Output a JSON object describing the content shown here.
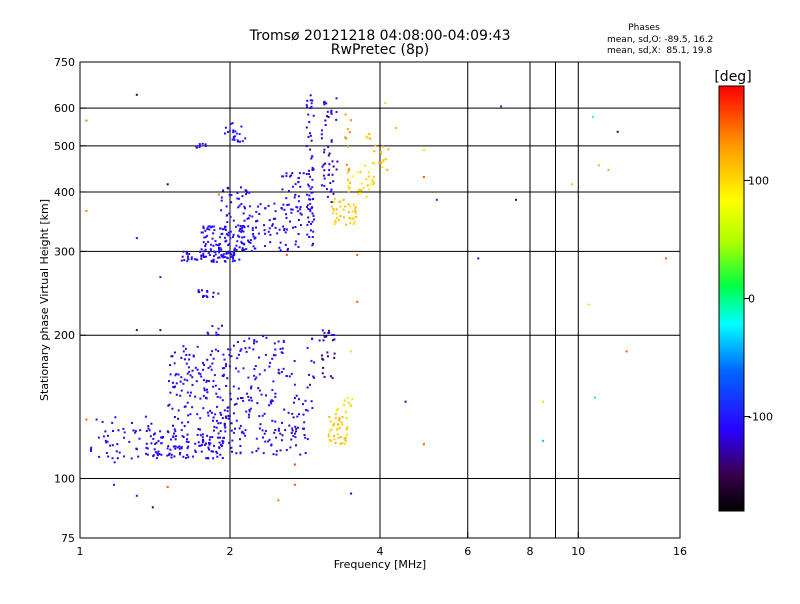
{
  "chart_data": {
    "type": "scatter",
    "title": "Tromsø 20121218 04:08:00-04:09:43",
    "subtitle": "RwPretec (8p)",
    "stats": {
      "heading": "Phases",
      "line_o": "mean, sd,O: -89.5, 16.2",
      "line_x": "mean, sd,X:  85.1, 19.8"
    },
    "xlabel": "Frequency [MHz]",
    "ylabel": "Stationary phase Virtual Height [km]",
    "xscale": "log",
    "yscale": "log",
    "xlim": [
      1,
      16
    ],
    "ylim": [
      75,
      750
    ],
    "xticks": [
      1,
      2,
      4,
      6,
      8,
      10,
      16
    ],
    "xtick_labels": [
      "1",
      "2",
      "4",
      "6",
      "8",
      "10",
      "16"
    ],
    "xminor": [
      9
    ],
    "xgrid": [
      2,
      4,
      6,
      8,
      10
    ],
    "yticks": [
      75,
      100,
      200,
      300,
      400,
      500,
      600,
      750
    ],
    "ytick_labels": [
      "75",
      "100",
      "200",
      "300",
      "400",
      "500",
      "600",
      "750"
    ],
    "ygrid": [
      100,
      200,
      300,
      400,
      500,
      600
    ],
    "grid": true,
    "colorbar": {
      "label": "[deg]",
      "range": [
        -180,
        180
      ],
      "ticks": [
        100,
        0,
        -100
      ],
      "tick_labels": [
        "100",
        "0",
        "-100"
      ]
    },
    "clusters": [
      {
        "x": [
          1.05,
          1.45
        ],
        "y": [
          108,
          135
        ],
        "phase": -110,
        "n": 60
      },
      {
        "x": [
          1.4,
          1.95
        ],
        "y": [
          110,
          125
        ],
        "phase": -110,
        "n": 110
      },
      {
        "x": [
          1.5,
          2.0
        ],
        "y": [
          125,
          190
        ],
        "phase": -112,
        "n": 150
      },
      {
        "x": [
          1.95,
          2.9
        ],
        "y": [
          112,
          150
        ],
        "phase": -112,
        "n": 130
      },
      {
        "x": [
          2.0,
          2.7
        ],
        "y": [
          150,
          200
        ],
        "phase": -108,
        "n": 70
      },
      {
        "x": [
          1.78,
          1.95
        ],
        "y": [
          200,
          210
        ],
        "phase": -110,
        "n": 8
      },
      {
        "x": [
          2.85,
          2.95
        ],
        "y": [
          140,
          200
        ],
        "phase": -112,
        "n": 12
      },
      {
        "x": [
          3.05,
          3.25
        ],
        "y": [
          160,
          185
        ],
        "phase": -135,
        "n": 12
      },
      {
        "x": [
          3.0,
          3.25
        ],
        "y": [
          195,
          205
        ],
        "phase": -120,
        "n": 14
      },
      {
        "x": [
          3.15,
          3.45
        ],
        "y": [
          118,
          135
        ],
        "phase": 110,
        "n": 40
      },
      {
        "x": [
          3.25,
          3.55
        ],
        "y": [
          135,
          150
        ],
        "phase": 95,
        "n": 12
      },
      {
        "x": [
          1.6,
          2.1
        ],
        "y": [
          285,
          300
        ],
        "phase": -105,
        "n": 70
      },
      {
        "x": [
          1.75,
          2.25
        ],
        "y": [
          300,
          340
        ],
        "phase": -108,
        "n": 110
      },
      {
        "x": [
          1.9,
          2.2
        ],
        "y": [
          340,
          410
        ],
        "phase": -110,
        "n": 40
      },
      {
        "x": [
          2.2,
          2.8
        ],
        "y": [
          300,
          380
        ],
        "phase": -110,
        "n": 70
      },
      {
        "x": [
          2.5,
          2.9
        ],
        "y": [
          380,
          440
        ],
        "phase": -110,
        "n": 30
      },
      {
        "x": [
          1.95,
          2.15
        ],
        "y": [
          510,
          560
        ],
        "phase": -100,
        "n": 22
      },
      {
        "x": [
          1.7,
          1.8
        ],
        "y": [
          490,
          505
        ],
        "phase": -110,
        "n": 8
      },
      {
        "x": [
          1.7,
          1.9
        ],
        "y": [
          240,
          250
        ],
        "phase": -115,
        "n": 14
      },
      {
        "x": [
          2.85,
          2.95
        ],
        "y": [
          300,
          650
        ],
        "phase": -112,
        "n": 60
      },
      {
        "x": [
          3.05,
          3.3
        ],
        "y": [
          380,
          630
        ],
        "phase": -120,
        "n": 50
      },
      {
        "x": [
          3.2,
          3.6
        ],
        "y": [
          340,
          390
        ],
        "phase": 105,
        "n": 40
      },
      {
        "x": [
          3.4,
          3.9
        ],
        "y": [
          390,
          440
        ],
        "phase": 100,
        "n": 30
      },
      {
        "x": [
          3.7,
          4.2
        ],
        "y": [
          440,
          530
        ],
        "phase": 110,
        "n": 20
      },
      {
        "x": [
          3.4,
          3.5
        ],
        "y": [
          440,
          600
        ],
        "phase": 130,
        "n": 10
      }
    ],
    "outliers": [
      {
        "x": 1.3,
        "y": 640,
        "phase": -140
      },
      {
        "x": 1.3,
        "y": 320,
        "phase": -110
      },
      {
        "x": 1.3,
        "y": 205,
        "phase": -140
      },
      {
        "x": 1.3,
        "y": 92,
        "phase": -100
      },
      {
        "x": 1.17,
        "y": 97,
        "phase": -100
      },
      {
        "x": 1.5,
        "y": 415,
        "phase": -150
      },
      {
        "x": 1.45,
        "y": 265,
        "phase": -100
      },
      {
        "x": 1.45,
        "y": 205,
        "phase": -130
      },
      {
        "x": 1.5,
        "y": 96,
        "phase": 150
      },
      {
        "x": 1.4,
        "y": 87,
        "phase": -140
      },
      {
        "x": 1.03,
        "y": 565,
        "phase": 140
      },
      {
        "x": 1.03,
        "y": 365,
        "phase": 140
      },
      {
        "x": 1.03,
        "y": 133,
        "phase": 150
      },
      {
        "x": 2.5,
        "y": 90,
        "phase": 140
      },
      {
        "x": 2.7,
        "y": 97,
        "phase": 150
      },
      {
        "x": 2.7,
        "y": 107,
        "phase": 160
      },
      {
        "x": 3.5,
        "y": 93,
        "phase": -120
      },
      {
        "x": 4.1,
        "y": 615,
        "phase": 100
      },
      {
        "x": 4.3,
        "y": 545,
        "phase": 120
      },
      {
        "x": 4.9,
        "y": 490,
        "phase": 100
      },
      {
        "x": 4.9,
        "y": 430,
        "phase": 150
      },
      {
        "x": 4.5,
        "y": 145,
        "phase": -130
      },
      {
        "x": 4.9,
        "y": 118,
        "phase": 150
      },
      {
        "x": 5.2,
        "y": 385,
        "phase": -90
      },
      {
        "x": 6.3,
        "y": 290,
        "phase": -110
      },
      {
        "x": 7.0,
        "y": 605,
        "phase": -90
      },
      {
        "x": 7.5,
        "y": 385,
        "phase": -140
      },
      {
        "x": 8.5,
        "y": 145,
        "phase": 50
      },
      {
        "x": 8.5,
        "y": 120,
        "phase": -40
      },
      {
        "x": 9.7,
        "y": 415,
        "phase": 115
      },
      {
        "x": 10.7,
        "y": 575,
        "phase": -20
      },
      {
        "x": 10.5,
        "y": 232,
        "phase": 95
      },
      {
        "x": 10.8,
        "y": 148,
        "phase": -30
      },
      {
        "x": 11.5,
        "y": 445,
        "phase": 120
      },
      {
        "x": 12.0,
        "y": 535,
        "phase": -150
      },
      {
        "x": 12.5,
        "y": 185,
        "phase": 150
      },
      {
        "x": 15.0,
        "y": 290,
        "phase": 150
      },
      {
        "x": 16.0,
        "y": 365,
        "phase": -20
      },
      {
        "x": 11.0,
        "y": 455,
        "phase": 115
      },
      {
        "x": 3.6,
        "y": 235,
        "phase": 150
      },
      {
        "x": 3.5,
        "y": 185,
        "phase": 100
      },
      {
        "x": 2.6,
        "y": 295,
        "phase": 150
      },
      {
        "x": 1.9,
        "y": 395,
        "phase": 140
      },
      {
        "x": 3.6,
        "y": 295,
        "phase": 150
      }
    ]
  }
}
